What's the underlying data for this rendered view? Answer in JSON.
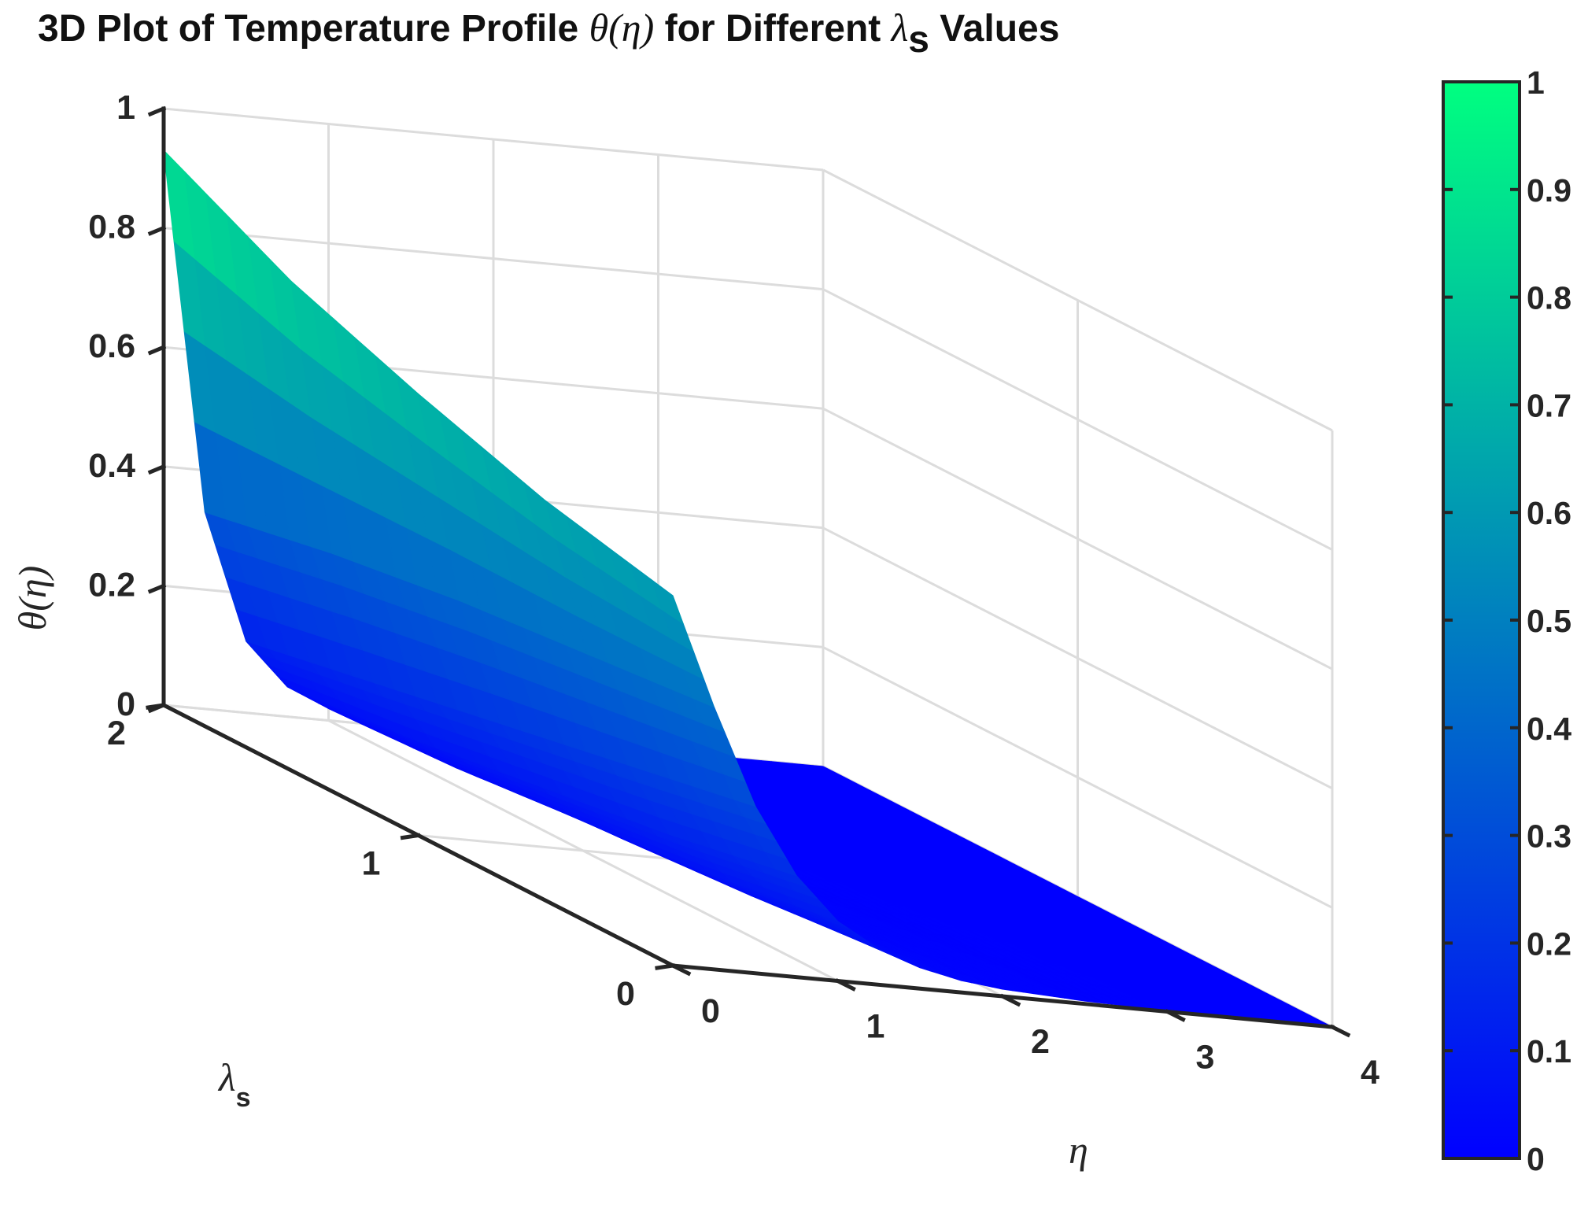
{
  "chart_data": {
    "type": "surface",
    "title": {
      "prefix": "3D Plot of Temperature Profile ",
      "math": "θ(η)",
      "middle": " for Different  ",
      "symbol": "λ",
      "subscript": "s",
      "suffix": "  Values"
    },
    "axes": {
      "x": {
        "symbol": "η",
        "range": [
          0,
          4
        ],
        "ticks": [
          "0",
          "1",
          "2",
          "3",
          "4"
        ],
        "tick_values": [
          0,
          1,
          2,
          3,
          4
        ]
      },
      "y": {
        "symbol": "λ",
        "subscript": "s",
        "range": [
          0,
          2
        ],
        "ticks": [
          "0",
          "1",
          "2"
        ],
        "tick_values": [
          0,
          1,
          2
        ]
      },
      "z": {
        "label": "θ(η)",
        "range": [
          0,
          1
        ],
        "ticks": [
          "0",
          "0.2",
          "0.4",
          "0.6",
          "0.8",
          "1"
        ],
        "tick_values": [
          0,
          0.2,
          0.4,
          0.6,
          0.8,
          1
        ]
      }
    },
    "grid": true,
    "colormap": {
      "low_color": "#0000ff",
      "high_color": "#00ff80"
    },
    "colorbar": {
      "range": [
        0,
        1
      ],
      "ticks": [
        "0",
        "0.1",
        "0.2",
        "0.3",
        "0.4",
        "0.5",
        "0.6",
        "0.7",
        "0.8",
        "0.9",
        "1"
      ],
      "tick_values": [
        0,
        0.1,
        0.2,
        0.3,
        0.4,
        0.5,
        0.6,
        0.7,
        0.8,
        0.9,
        1
      ]
    },
    "series": [
      {
        "lambda_s": [
          0,
          0.5,
          1.0,
          1.5,
          2.0
        ],
        "eta": [
          0,
          0.25,
          0.5,
          0.75,
          1.0,
          1.25,
          1.5,
          1.75,
          2.0,
          2.5,
          3.0,
          3.5,
          4.0
        ],
        "theta": [
          [
            0.62,
            0.44,
            0.28,
            0.17,
            0.1,
            0.06,
            0.035,
            0.02,
            0.012,
            0.005,
            0.002,
            0.001,
            0.0
          ],
          [
            0.67,
            0.42,
            0.24,
            0.13,
            0.07,
            0.04,
            0.022,
            0.012,
            0.007,
            0.003,
            0.001,
            0.0,
            0.0
          ],
          [
            0.74,
            0.4,
            0.2,
            0.1,
            0.05,
            0.025,
            0.013,
            0.007,
            0.004,
            0.001,
            0.0,
            0.0,
            0.0
          ],
          [
            0.82,
            0.37,
            0.16,
            0.07,
            0.03,
            0.015,
            0.008,
            0.004,
            0.002,
            0.001,
            0.0,
            0.0,
            0.0
          ],
          [
            0.93,
            0.33,
            0.12,
            0.05,
            0.02,
            0.01,
            0.005,
            0.002,
            0.001,
            0.0,
            0.0,
            0.0,
            0.0
          ]
        ]
      }
    ]
  }
}
